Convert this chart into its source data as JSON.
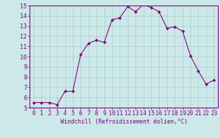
{
  "x": [
    0,
    1,
    2,
    3,
    4,
    5,
    6,
    7,
    8,
    9,
    10,
    11,
    12,
    13,
    14,
    15,
    16,
    17,
    18,
    19,
    20,
    21,
    22,
    23
  ],
  "y": [
    5.5,
    5.5,
    5.5,
    5.3,
    6.6,
    6.6,
    10.2,
    11.3,
    11.6,
    11.4,
    13.6,
    13.8,
    14.9,
    14.4,
    15.1,
    14.8,
    14.4,
    12.8,
    12.9,
    12.5,
    10.1,
    8.6,
    7.3,
    7.7
  ],
  "line_color": "#800080",
  "marker": "D",
  "marker_size": 2.0,
  "bg_color": "#cce8e8",
  "grid_color": "#aacccc",
  "xlabel": "Windchill (Refroidissement éolien,°C)",
  "xlabel_color": "#800080",
  "tick_color": "#800080",
  "ylim": [
    5,
    15
  ],
  "xlim": [
    -0.5,
    23.5
  ],
  "yticks": [
    5,
    6,
    7,
    8,
    9,
    10,
    11,
    12,
    13,
    14,
    15
  ],
  "xticks": [
    0,
    1,
    2,
    3,
    4,
    5,
    6,
    7,
    8,
    9,
    10,
    11,
    12,
    13,
    14,
    15,
    16,
    17,
    18,
    19,
    20,
    21,
    22,
    23
  ],
  "tick_fontsize": 6,
  "xlabel_fontsize": 6,
  "linewidth": 0.8
}
